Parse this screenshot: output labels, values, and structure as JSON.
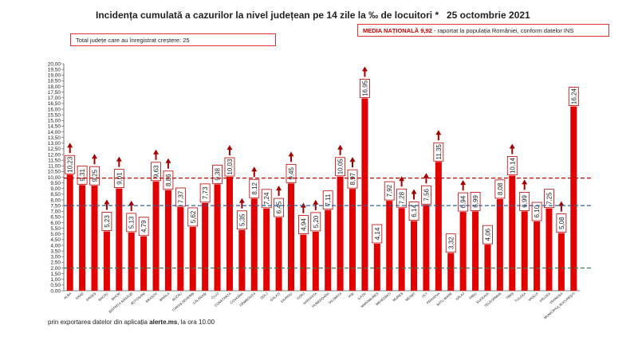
{
  "header": {
    "title": "Incidența cumulată a cazurilor la nivel județean pe 14 zile la ‰ de locuitori *",
    "date": "25 octombrie 2021"
  },
  "info_box": {
    "text": "Total județe care au înregistrat creștere:  25"
  },
  "national_box": {
    "label": "MEDIA NAȚIONALĂ",
    "value": "9,92",
    "suffix": " -  raportat la populația României, conform datelor INS"
  },
  "footer": {
    "prefix": "prin exportarea datelor din aplicația ",
    "app": "alerte.ms",
    "suffix": ", la ora 10.00"
  },
  "colors": {
    "bar": "#e30000",
    "arrow": "#a50000",
    "national_line": "#c00000",
    "mid_line": "#2f5f9e",
    "low_line": "#3b7a55"
  },
  "chart_data": {
    "type": "bar",
    "categories": [
      "ALBA",
      "ARAD",
      "ARGEȘ",
      "BACĂU",
      "BIHOR",
      "BISTRIȚA-NĂSĂUD",
      "BOTOȘANI",
      "BRAȘOV",
      "BRĂILA",
      "BUZĂU",
      "CARAȘ-SEVERIN",
      "CĂLĂRAȘI",
      "CLUJ",
      "CONSTANȚA",
      "COVASNA",
      "DÂMBOVIȚA",
      "DOLJ",
      "GALAȚI",
      "GIURGIU",
      "GORJ",
      "HARGHITA",
      "HUNEDOARA",
      "IALOMIȚA",
      "IAȘI",
      "ILFOV",
      "MARAMUREȘ",
      "MEHEDINȚI",
      "MUREȘ",
      "NEAMȚ",
      "OLT",
      "PRAHOVA",
      "SATU MARE",
      "SĂLAJ",
      "SIBIU",
      "SUCEAVA",
      "TELEORMAN",
      "TIMIȘ",
      "TULCEA",
      "VASLUI",
      "VÂLCEA",
      "VRANCEA",
      "MUNICIPIUL BUCUREȘTI"
    ],
    "values": [
      10.23,
      9.31,
      9.25,
      5.23,
      9.01,
      5.13,
      4.79,
      9.63,
      8.86,
      7.37,
      5.62,
      7.73,
      9.38,
      10.03,
      5.35,
      8.12,
      7.24,
      6.45,
      9.45,
      4.94,
      5.2,
      7.11,
      10.05,
      8.97,
      16.95,
      4.14,
      7.92,
      7.28,
      6.14,
      7.56,
      11.35,
      3.32,
      6.94,
      6.99,
      4.06,
      8.08,
      10.14,
      6.99,
      6.1,
      7.25,
      5.08,
      16.24
    ],
    "labels": [
      "10,23",
      "9,31",
      "9,25",
      "5,23",
      "9,01",
      "5,13",
      "4,79",
      "9,63",
      "8,86",
      "7,37",
      "5,62",
      "7,73",
      "9,38",
      "10,03",
      "5,35",
      "8,12",
      "7,24",
      "6,45",
      "9,45",
      "4,94",
      "5,20",
      "7,11",
      "10,05",
      "8,97",
      "16,95",
      "4,14",
      "7,92",
      "7,28",
      "6,14",
      "7,56",
      "11,35",
      "3,32",
      "6,94",
      "6,99",
      "4,06",
      "8,08",
      "10,14",
      "6,99",
      "6,10",
      "7,25",
      "5,08",
      "16,24"
    ],
    "increase": [
      true,
      false,
      true,
      true,
      true,
      true,
      false,
      true,
      true,
      false,
      false,
      false,
      false,
      true,
      true,
      true,
      false,
      true,
      true,
      true,
      true,
      false,
      true,
      true,
      true,
      false,
      false,
      true,
      true,
      true,
      true,
      false,
      true,
      false,
      false,
      false,
      true,
      true,
      false,
      false,
      true,
      false
    ],
    "ylim": [
      0,
      20
    ],
    "yticks": [
      "0,00",
      "0,50",
      "1,00",
      "1,50",
      "2,00",
      "2,50",
      "3,00",
      "3,50",
      "4,00",
      "4,50",
      "5,00",
      "5,50",
      "6,00",
      "6,50",
      "7,00",
      "7,50",
      "8,00",
      "8,50",
      "9,00",
      "9,50",
      "10,00",
      "10,50",
      "11,00",
      "11,50",
      "12,00",
      "12,50",
      "13,00",
      "13,50",
      "14,00",
      "14,50",
      "15,00",
      "15,50",
      "16,00",
      "16,50",
      "17,00",
      "17,50",
      "18,00",
      "18,50",
      "19,00",
      "19,50",
      "20,00"
    ],
    "reference_lines": [
      {
        "value": 9.92,
        "style": "dashed",
        "color": "#c00000"
      },
      {
        "value": 7.5,
        "style": "dashed",
        "color": "#2f5f9e"
      },
      {
        "value": 2.0,
        "style": "dashed",
        "color": "#3b7a55"
      }
    ],
    "grid": false
  }
}
